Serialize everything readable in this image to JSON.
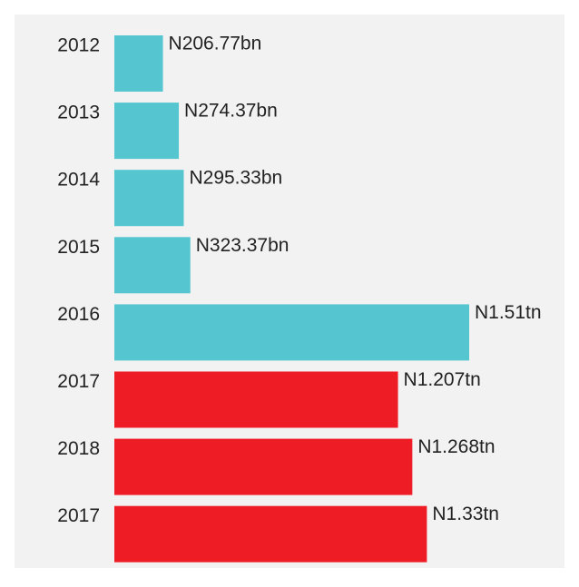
{
  "chart_data": {
    "type": "bar",
    "orientation": "horizontal",
    "categories": [
      "2012",
      "2013",
      "2014",
      "2015",
      "2016",
      "2017",
      "2018",
      "2017"
    ],
    "values": [
      206.77,
      274.37,
      295.33,
      323.37,
      1510,
      1207,
      1268,
      1330
    ],
    "value_labels": [
      "N206.77bn",
      "N274.37bn",
      "N295.33bn",
      "N323.37bn",
      "N1.51tn",
      "N1.207tn",
      "N1.268tn",
      "N1.33tn"
    ],
    "colors": [
      "#55c5cf",
      "#55c5cf",
      "#55c5cf",
      "#55c5cf",
      "#55c5cf",
      "#ee1c25",
      "#ee1c25",
      "#ee1c25"
    ]
  }
}
